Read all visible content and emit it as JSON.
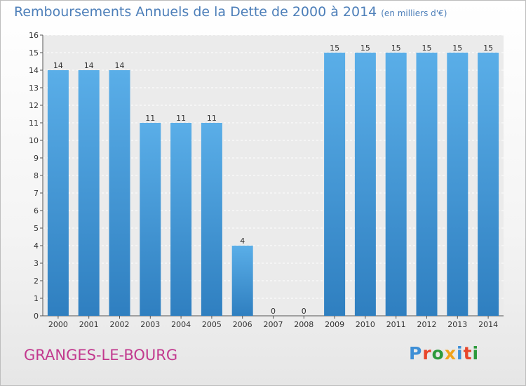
{
  "header": {
    "title": "Remboursements Annuels de la Dette de 2000 à 2014",
    "unit": "(en milliers d'€)"
  },
  "footer": {
    "town": "GRANGES-LE-BOURG",
    "logo": "Proxiti"
  },
  "colors": {
    "title": "#4d7fb9",
    "town": "#c2398e",
    "bar_top": "#5aaee8",
    "bar_bottom": "#2f7fc0"
  },
  "chart_data": {
    "type": "bar",
    "title": "Remboursements Annuels de la Dette de 2000 à 2014",
    "xlabel": "",
    "ylabel": "",
    "categories": [
      "2000",
      "2001",
      "2002",
      "2003",
      "2004",
      "2005",
      "2006",
      "2007",
      "2008",
      "2009",
      "2010",
      "2011",
      "2012",
      "2013",
      "2014"
    ],
    "values": [
      14,
      14,
      14,
      11,
      11,
      11,
      4,
      0,
      0,
      15,
      15,
      15,
      15,
      15,
      15
    ],
    "ylim": [
      0,
      16
    ],
    "yticks": [
      0,
      1,
      2,
      3,
      4,
      5,
      6,
      7,
      8,
      9,
      10,
      11,
      12,
      13,
      14,
      15,
      16
    ],
    "grid": true
  }
}
